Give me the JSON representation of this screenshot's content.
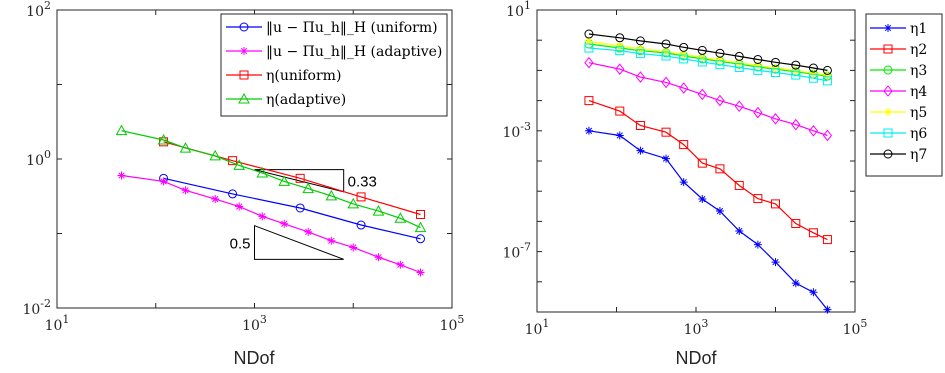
{
  "chart_data": [
    {
      "type": "line",
      "xscale": "log",
      "yscale": "log",
      "xlabel": "NDof",
      "ylabel": "",
      "xlim": [
        10,
        100000
      ],
      "ylim": [
        0.01,
        100
      ],
      "xticks": [
        10,
        1000,
        100000
      ],
      "xtick_labels": [
        "10^1",
        "10^3",
        "10^5"
      ],
      "yticks": [
        0.01,
        1,
        100
      ],
      "ytick_labels": [
        "10^-2",
        "10^0",
        "10^2"
      ],
      "legend_position": "top-right",
      "series": [
        {
          "name": "‖u − Πu_h‖_H (uniform)",
          "color": "#0000ff",
          "marker": "circle",
          "x": [
            120,
            600,
            2900,
            12000,
            48000
          ],
          "y": [
            0.55,
            0.34,
            0.22,
            0.13,
            0.085
          ]
        },
        {
          "name": "‖u − Πu_h‖_H (adaptive)",
          "color": "#ff00ff",
          "marker": "asterisk",
          "x": [
            45,
            120,
            200,
            400,
            700,
            1200,
            2000,
            3500,
            6000,
            10000,
            18000,
            30000,
            48000
          ],
          "y": [
            0.6,
            0.5,
            0.38,
            0.29,
            0.23,
            0.17,
            0.135,
            0.105,
            0.08,
            0.065,
            0.048,
            0.038,
            0.03
          ]
        },
        {
          "name": "η(uniform)",
          "color": "#ff0000",
          "marker": "square",
          "x": [
            120,
            600,
            2900,
            12000,
            48000
          ],
          "y": [
            1.7,
            0.95,
            0.55,
            0.31,
            0.18
          ]
        },
        {
          "name": "η(adaptive)",
          "color": "#00cc00",
          "marker": "triangle",
          "x": [
            45,
            120,
            200,
            400,
            700,
            1200,
            2000,
            3500,
            6000,
            10000,
            18000,
            30000,
            48000
          ],
          "y": [
            2.4,
            1.8,
            1.4,
            1.1,
            0.82,
            0.65,
            0.5,
            0.4,
            0.32,
            0.25,
            0.2,
            0.16,
            0.12
          ]
        }
      ],
      "annotations": [
        {
          "text": "0.33",
          "kind": "slope-triangle",
          "x0": 1000,
          "x1": 8000,
          "y_top": 0.72,
          "slope": -0.33
        },
        {
          "text": "0.5",
          "kind": "slope-triangle",
          "x0": 1000,
          "x1": 8000,
          "y_bottom": 0.045,
          "slope": -0.5
        }
      ]
    },
    {
      "type": "line",
      "xscale": "log",
      "yscale": "log",
      "xlabel": "NDof",
      "ylabel": "",
      "xlim": [
        10,
        100000
      ],
      "ylim": [
        1e-09,
        10
      ],
      "xticks": [
        10,
        1000,
        100000
      ],
      "xtick_labels": [
        "10^1",
        "10^3",
        "10^5"
      ],
      "yticks": [
        1e-07,
        0.001,
        10
      ],
      "ytick_labels": [
        "10^-7",
        "10^-3",
        "10^1"
      ],
      "legend_position": "outside-right",
      "series": [
        {
          "name": "η1",
          "color": "#0000ff",
          "marker": "asterisk",
          "x": [
            45,
            110,
            200,
            420,
            700,
            1200,
            2000,
            3500,
            6000,
            10000,
            18000,
            30000,
            45000
          ],
          "y": [
            0.001,
            0.0007,
            0.00022,
            0.00012,
            2e-05,
            5.5e-06,
            2.2e-06,
            4.8e-07,
            1.7e-07,
            4.5e-08,
            9e-09,
            4.5e-09,
            1.2e-09
          ]
        },
        {
          "name": "η2",
          "color": "#ff0000",
          "marker": "square",
          "x": [
            45,
            110,
            200,
            420,
            700,
            1200,
            2000,
            3500,
            6000,
            10000,
            18000,
            30000,
            45000
          ],
          "y": [
            0.01,
            0.0045,
            0.0015,
            0.0009,
            0.00035,
            8.5e-05,
            5.5e-05,
            1.55e-05,
            5.7e-06,
            3.8e-06,
            8.5e-07,
            4.2e-07,
            2.5e-07
          ]
        },
        {
          "name": "η3",
          "color": "#00ee00",
          "marker": "circle",
          "x": [
            45,
            110,
            200,
            420,
            700,
            1200,
            2000,
            3500,
            6000,
            10000,
            18000,
            30000,
            45000
          ],
          "y": [
            0.75,
            0.55,
            0.45,
            0.38,
            0.3,
            0.24,
            0.2,
            0.16,
            0.13,
            0.11,
            0.09,
            0.075,
            0.065
          ]
        },
        {
          "name": "η4",
          "color": "#ff00ff",
          "marker": "diamond",
          "x": [
            45,
            110,
            200,
            420,
            700,
            1200,
            2000,
            3500,
            6000,
            10000,
            18000,
            30000,
            45000
          ],
          "y": [
            0.18,
            0.11,
            0.06,
            0.04,
            0.026,
            0.016,
            0.01,
            0.0065,
            0.004,
            0.0025,
            0.0016,
            0.001,
            0.0007
          ]
        },
        {
          "name": "η5",
          "color": "#ffff00",
          "marker": "asterisk",
          "x": [
            45,
            110,
            200,
            420,
            700,
            1200,
            2000,
            3500,
            6000,
            10000,
            18000,
            30000,
            45000
          ],
          "y": [
            0.9,
            0.65,
            0.52,
            0.42,
            0.34,
            0.27,
            0.22,
            0.18,
            0.145,
            0.12,
            0.1,
            0.08,
            0.07
          ]
        },
        {
          "name": "η6",
          "color": "#00eeee",
          "marker": "square",
          "x": [
            45,
            110,
            200,
            420,
            700,
            1200,
            2000,
            3500,
            6000,
            10000,
            18000,
            30000,
            45000
          ],
          "y": [
            0.55,
            0.45,
            0.36,
            0.3,
            0.24,
            0.19,
            0.155,
            0.125,
            0.1,
            0.085,
            0.07,
            0.055,
            0.045
          ]
        },
        {
          "name": "η7",
          "color": "#000000",
          "marker": "circle",
          "x": [
            45,
            110,
            200,
            420,
            700,
            1200,
            2000,
            3500,
            6000,
            10000,
            18000,
            30000,
            45000
          ],
          "y": [
            1.6,
            1.2,
            0.95,
            0.75,
            0.58,
            0.46,
            0.37,
            0.29,
            0.23,
            0.185,
            0.15,
            0.12,
            0.1
          ]
        }
      ]
    }
  ]
}
